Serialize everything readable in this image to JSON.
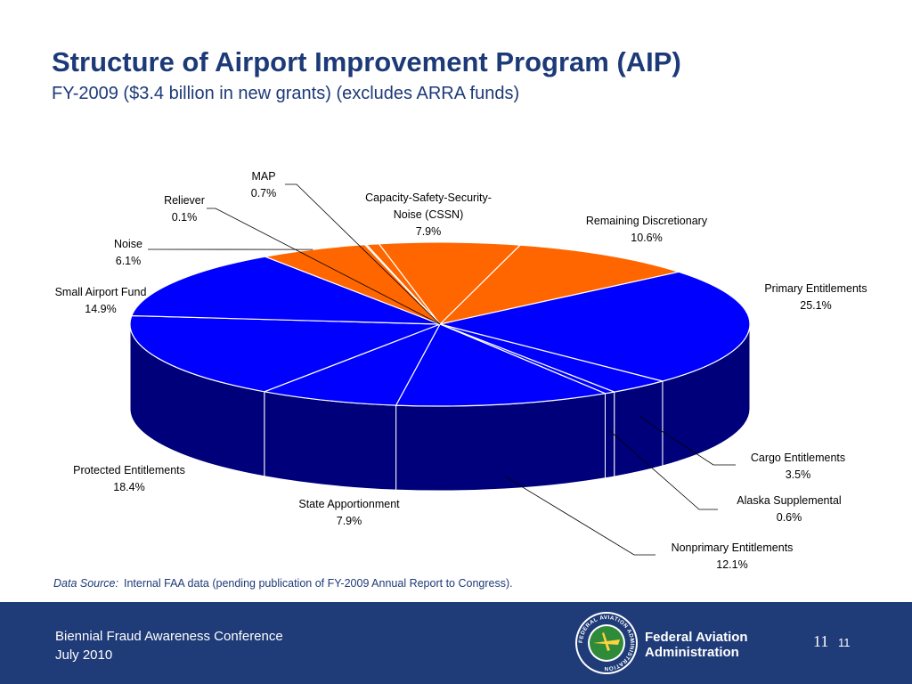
{
  "header": {
    "title": "Structure of Airport Improvement Program (AIP)",
    "subtitle": "FY-2009 ($3.4 billion in new grants) (excludes ARRA funds)"
  },
  "chart_data": {
    "type": "pie",
    "style": "3d",
    "slices": [
      {
        "label": "Remaining Discretionary",
        "value": 10.6,
        "value_label": "10.6%",
        "color": "#ff6600"
      },
      {
        "label": "Primary Entitlements",
        "value": 25.1,
        "value_label": "25.1%",
        "color": "#0000ff"
      },
      {
        "label": "Cargo Entitlements",
        "value": 3.5,
        "value_label": "3.5%",
        "color": "#0000ff"
      },
      {
        "label": "Alaska Supplemental",
        "value": 0.6,
        "value_label": "0.6%",
        "color": "#0000ff"
      },
      {
        "label": "Nonprimary Entitlements",
        "value": 12.1,
        "value_label": "12.1%",
        "color": "#0000ff"
      },
      {
        "label": "State Apportionment",
        "value": 7.9,
        "value_label": "7.9%",
        "color": "#0000ff"
      },
      {
        "label": "Protected Entitlements",
        "value": 18.4,
        "value_label": "18.4%",
        "color": "#0000ff"
      },
      {
        "label": "Small Airport Fund",
        "value": 14.9,
        "value_label": "14.9%",
        "color": "#0000ff"
      },
      {
        "label": "Noise",
        "value": 6.1,
        "value_label": "6.1%",
        "color": "#ff6600"
      },
      {
        "label": "Reliever",
        "value": 0.1,
        "value_label": "0.1%",
        "color": "#ff6600"
      },
      {
        "label": "MAP",
        "value": 0.7,
        "value_label": "0.7%",
        "color": "#ff6600"
      },
      {
        "label": "Capacity-Safety-Security-Noise (CSSN)",
        "value": 7.9,
        "value_label": "7.9%",
        "color": "#ff6600"
      }
    ],
    "side_color": "#00007a",
    "edge_color": "#ffffff"
  },
  "source": {
    "label": "Data Source:",
    "text": "Internal FAA data (pending publication of FY-2009 Annual Report to Congress)."
  },
  "footer": {
    "conference": "Biennial Fraud Awareness Conference",
    "date": "July 2010",
    "agency_line1": "Federal Aviation",
    "agency_line2": "Administration",
    "seal_text": "FEDERAL AVIATION ADMINISTRATION",
    "slide_number_a": "11",
    "slide_number_b": "11"
  }
}
